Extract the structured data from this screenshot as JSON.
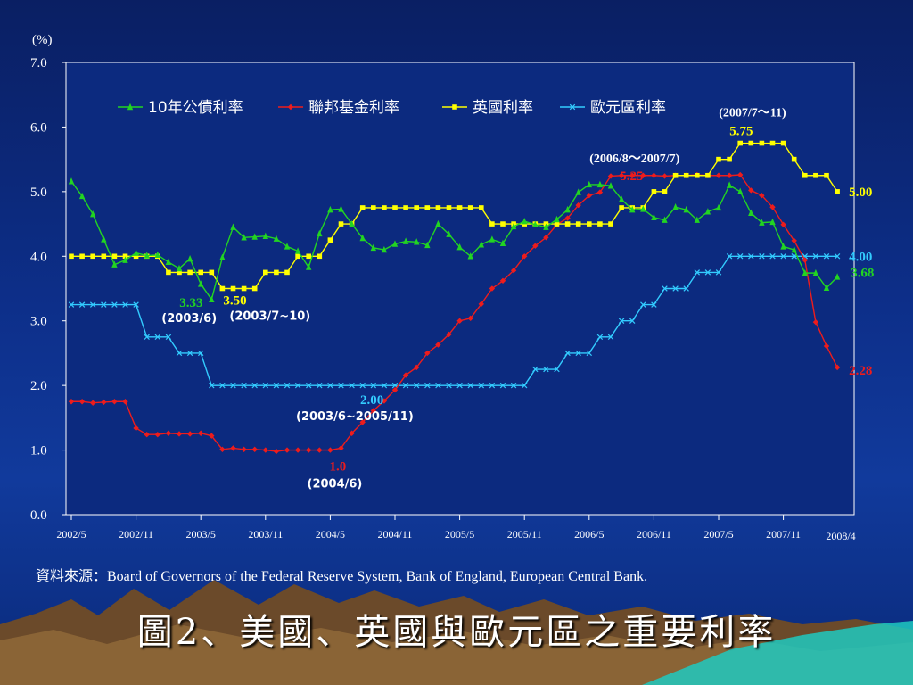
{
  "title": "圖2、美國、英國與歐元區之重要利率",
  "source": "資料來源：Board of Governors of the Federal Reserve System, Bank of England, European Central Bank.",
  "chart_data": {
    "type": "line",
    "ylabel": "(%)",
    "ylim": [
      0,
      7
    ],
    "yticks": [
      "0.0",
      "1.0",
      "2.0",
      "3.0",
      "4.0",
      "5.0",
      "6.0",
      "7.0"
    ],
    "xticks": [
      "2002/5",
      "2002/11",
      "2003/5",
      "2003/11",
      "2004/5",
      "2004/11",
      "2005/5",
      "2005/11",
      "2006/5",
      "2006/11",
      "2007/5",
      "2007/11",
      "2008/4"
    ],
    "legend_position": "top",
    "series": [
      {
        "name": "10年公債利率",
        "color": "#22d422",
        "marker": "triangle",
        "values": [
          5.16,
          4.93,
          4.65,
          4.26,
          3.87,
          3.94,
          4.05,
          4.01,
          4.02,
          3.91,
          3.81,
          3.96,
          3.57,
          3.33,
          3.98,
          4.45,
          4.29,
          4.3,
          4.31,
          4.27,
          4.15,
          4.08,
          3.83,
          4.35,
          4.72,
          4.73,
          4.5,
          4.28,
          4.13,
          4.1,
          4.19,
          4.23,
          4.22,
          4.17,
          4.5,
          4.34,
          4.14,
          4.0,
          4.18,
          4.26,
          4.2,
          4.46,
          4.54,
          4.49,
          4.45,
          4.57,
          4.72,
          4.99,
          5.11,
          5.11,
          5.09,
          4.88,
          4.72,
          4.73,
          4.6,
          4.56,
          4.76,
          4.72,
          4.56,
          4.69,
          4.75,
          5.1,
          5.0,
          4.67,
          4.52,
          4.53,
          4.15,
          4.1,
          3.74,
          3.74,
          3.51,
          3.68
        ]
      },
      {
        "name": "聯邦基金利率",
        "color": "#ee1c1c",
        "marker": "diamond",
        "values": [
          1.75,
          1.75,
          1.73,
          1.74,
          1.75,
          1.75,
          1.34,
          1.24,
          1.24,
          1.26,
          1.25,
          1.25,
          1.26,
          1.22,
          1.01,
          1.03,
          1.01,
          1.01,
          1.0,
          0.98,
          1.0,
          1.0,
          1.0,
          1.0,
          1.0,
          1.03,
          1.26,
          1.43,
          1.61,
          1.76,
          1.93,
          2.16,
          2.28,
          2.5,
          2.63,
          2.79,
          3.0,
          3.04,
          3.26,
          3.5,
          3.62,
          3.78,
          4.0,
          4.16,
          4.29,
          4.49,
          4.59,
          4.79,
          4.94,
          4.99,
          5.24,
          5.25,
          5.25,
          5.25,
          5.25,
          5.24,
          5.25,
          5.25,
          5.26,
          5.25,
          5.25,
          5.25,
          5.26,
          5.02,
          4.94,
          4.76,
          4.49,
          4.24,
          3.94,
          2.98,
          2.61,
          2.28
        ]
      },
      {
        "name": "英國利率",
        "color": "#ffff00",
        "marker": "square",
        "values": [
          4.0,
          4.0,
          4.0,
          4.0,
          4.0,
          4.0,
          4.0,
          4.0,
          4.0,
          3.75,
          3.75,
          3.75,
          3.75,
          3.75,
          3.5,
          3.5,
          3.5,
          3.5,
          3.75,
          3.75,
          3.75,
          4.0,
          4.0,
          4.0,
          4.25,
          4.5,
          4.5,
          4.75,
          4.75,
          4.75,
          4.75,
          4.75,
          4.75,
          4.75,
          4.75,
          4.75,
          4.75,
          4.75,
          4.75,
          4.5,
          4.5,
          4.5,
          4.5,
          4.5,
          4.5,
          4.5,
          4.5,
          4.5,
          4.5,
          4.5,
          4.5,
          4.75,
          4.75,
          4.75,
          5.0,
          5.0,
          5.25,
          5.25,
          5.25,
          5.25,
          5.5,
          5.5,
          5.75,
          5.75,
          5.75,
          5.75,
          5.75,
          5.5,
          5.25,
          5.25,
          5.25,
          5.0
        ]
      },
      {
        "name": "歐元區利率",
        "color": "#33ccff",
        "marker": "x",
        "values": [
          3.25,
          3.25,
          3.25,
          3.25,
          3.25,
          3.25,
          3.25,
          2.75,
          2.75,
          2.75,
          2.5,
          2.5,
          2.5,
          2.0,
          2.0,
          2.0,
          2.0,
          2.0,
          2.0,
          2.0,
          2.0,
          2.0,
          2.0,
          2.0,
          2.0,
          2.0,
          2.0,
          2.0,
          2.0,
          2.0,
          2.0,
          2.0,
          2.0,
          2.0,
          2.0,
          2.0,
          2.0,
          2.0,
          2.0,
          2.0,
          2.0,
          2.0,
          2.0,
          2.25,
          2.25,
          2.25,
          2.5,
          2.5,
          2.5,
          2.75,
          2.75,
          3.0,
          3.0,
          3.25,
          3.25,
          3.5,
          3.5,
          3.5,
          3.75,
          3.75,
          3.75,
          4.0,
          4.0,
          4.0,
          4.0,
          4.0,
          4.0,
          4.0,
          4.0,
          4.0,
          4.0,
          4.0
        ]
      }
    ],
    "annotations": [
      {
        "text": "3.33",
        "color": "#22d422",
        "series": 0,
        "index": 13
      },
      {
        "text": "(2003/6)",
        "color": "#ffffff",
        "series": 0,
        "index": 13
      },
      {
        "text": "3.50",
        "color": "#ffff00",
        "series": 2,
        "index": 14
      },
      {
        "text": "(2003/7~10)",
        "color": "#ffffff",
        "series": 2,
        "index": 14
      },
      {
        "text": "2.00",
        "color": "#33ccff",
        "series": 3,
        "index": 20
      },
      {
        "text": "(2003/6~2005/11)",
        "color": "#ffffff",
        "series": 3,
        "index": 20
      },
      {
        "text": "1.0",
        "color": "#ee1c1c",
        "series": 1,
        "index": 25
      },
      {
        "text": "(2004/6)",
        "color": "#ffffff",
        "series": 1,
        "index": 25
      },
      {
        "text": "(2006/8～2007/7)",
        "color": "#ffffff",
        "series": 1,
        "index": 52
      },
      {
        "text": "5.25",
        "color": "#ee1c1c",
        "series": 1,
        "index": 52
      },
      {
        "text": "(2007/7～11)",
        "color": "#ffffff",
        "series": 2,
        "index": 62
      },
      {
        "text": "5.75",
        "color": "#ffff00",
        "series": 2,
        "index": 62
      },
      {
        "text": "5.00",
        "color": "#ffff00",
        "series": 2,
        "index": 71
      },
      {
        "text": "4.00",
        "color": "#33ccff",
        "series": 3,
        "index": 71
      },
      {
        "text": "3.68",
        "color": "#22d422",
        "series": 0,
        "index": 71
      },
      {
        "text": "2.28",
        "color": "#ee1c1c",
        "series": 1,
        "index": 71
      }
    ]
  }
}
